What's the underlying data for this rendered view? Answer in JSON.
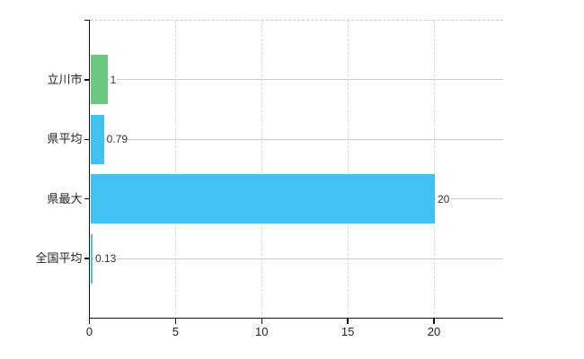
{
  "chart_data": {
    "type": "bar",
    "orientation": "horizontal",
    "title": "",
    "xlabel": "",
    "ylabel": "",
    "categories": [
      "立川市",
      "県平均",
      "県最大",
      "全国平均"
    ],
    "values": [
      1,
      0.79,
      20,
      0.13
    ],
    "value_labels": [
      "1",
      "0.79",
      "20",
      "0.13"
    ],
    "bar_colors": [
      "#6cc87f",
      "#41c2f2",
      "#41c2f2",
      "#41c2f2"
    ],
    "x_ticks": [
      0,
      5,
      10,
      15,
      20
    ],
    "x_tick_labels": [
      "0",
      "5",
      "10",
      "15",
      "20"
    ],
    "xlim": [
      0,
      24
    ],
    "grid": true,
    "legend": false,
    "colors": {
      "background": "#ffffff",
      "axis": "#111111",
      "vertical_grid": "#d9d9d9",
      "category_line": "#cccccc",
      "plot_border_top": "#c9c9c9",
      "category_text": "#222222",
      "value_text": "#333333",
      "bar_green": "#6cc87f",
      "bar_blue": "#41c2f2"
    }
  }
}
